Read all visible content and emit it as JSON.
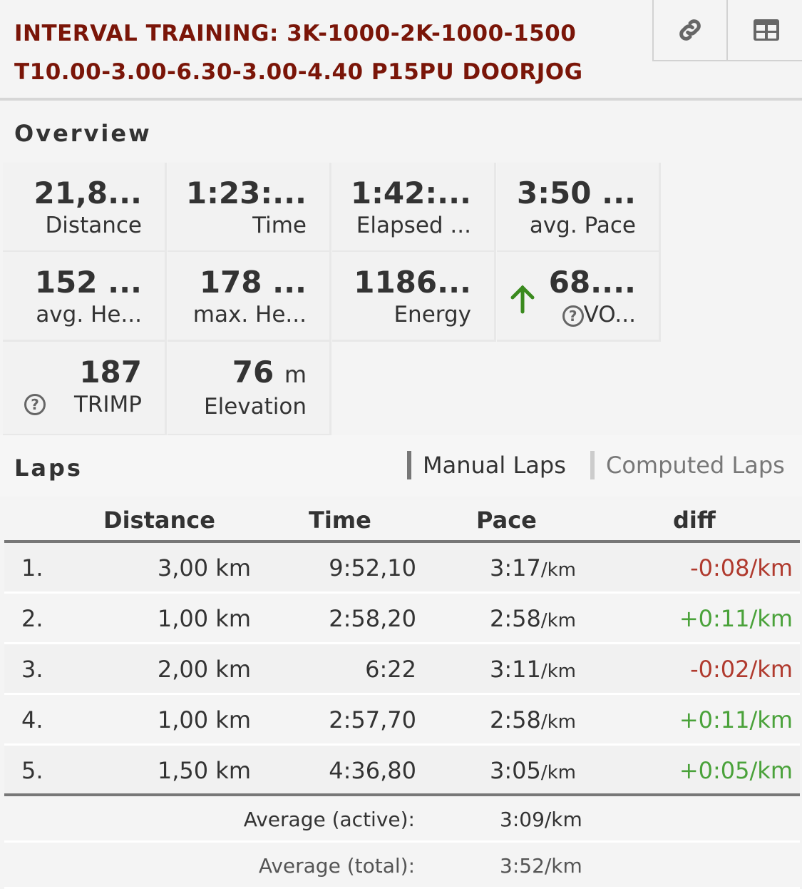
{
  "title": {
    "line1": "INTERVAL TRAINING: 3K-1000-2K-1000-1500",
    "line2": "T10.00-3.00-6.30-3.00-4.40 P15PU DOORJOG"
  },
  "toolbar": {
    "link_icon": "link-icon",
    "table_icon": "table-icon"
  },
  "overview": {
    "heading": "Overview",
    "stats": [
      {
        "value": "21,8...",
        "label": "Distance"
      },
      {
        "value": "1:23:...",
        "label": "Time"
      },
      {
        "value": "1:42:...",
        "label": "Elapsed ..."
      },
      {
        "value": "3:50 ...",
        "label": "avg. Pace"
      },
      {
        "value": "152 ...",
        "label": "avg. He..."
      },
      {
        "value": "178 ...",
        "label": "max. He..."
      },
      {
        "value": "1186...",
        "label": "Energy"
      },
      {
        "value": "68....",
        "label": "VO...",
        "trend": "up",
        "trend_color": "#3a8a1e"
      },
      {
        "value": "187",
        "label": "TRIMP"
      },
      {
        "value": "76",
        "unit": "m",
        "label": "Elevation"
      }
    ]
  },
  "laps": {
    "heading": "Laps",
    "tabs": [
      "Manual Laps",
      "Computed Laps"
    ],
    "columns": [
      "Distance",
      "Time",
      "Pace",
      "diff"
    ],
    "rows": [
      {
        "n": "1.",
        "distance": "3,00 km",
        "time": "9:52,10",
        "pace": "3:17",
        "unit": "/km",
        "diff": "-0:08/km",
        "sign": "neg"
      },
      {
        "n": "2.",
        "distance": "1,00 km",
        "time": "2:58,20",
        "pace": "2:58",
        "unit": "/km",
        "diff": "+0:11/km",
        "sign": "pos"
      },
      {
        "n": "3.",
        "distance": "2,00 km",
        "time": "6:22",
        "pace": "3:11",
        "unit": "/km",
        "diff": "-0:02/km",
        "sign": "neg"
      },
      {
        "n": "4.",
        "distance": "1,00 km",
        "time": "2:57,70",
        "pace": "2:58",
        "unit": "/km",
        "diff": "+0:11/km",
        "sign": "pos"
      },
      {
        "n": "5.",
        "distance": "1,50 km",
        "time": "4:36,80",
        "pace": "3:05",
        "unit": "/km",
        "diff": "+0:05/km",
        "sign": "pos"
      }
    ],
    "average_active": {
      "label": "Average (active):",
      "value": "3:09/km"
    },
    "average_total": {
      "label": "Average (total):",
      "value": "3:52/km"
    },
    "colors": {
      "neg": "#b03a2e",
      "pos": "#4aa23a"
    }
  }
}
